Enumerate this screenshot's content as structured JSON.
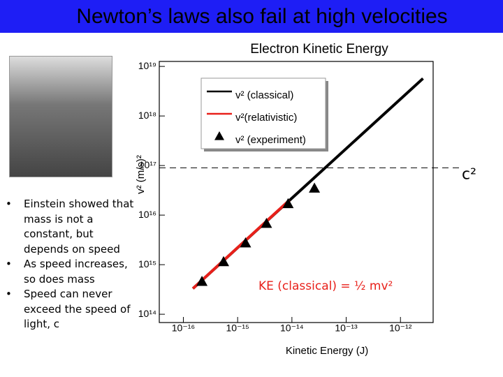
{
  "slide_title": "Newton’s laws also fail at high velocities",
  "bullets": [
    "Einstein showed that mass is not a constant, but depends on speed",
    "As speed increases, so does mass",
    "Speed can never exceed the speed of light, c"
  ],
  "chart_data": {
    "type": "line",
    "title": "Electron Kinetic Energy",
    "x_label": "Kinetic Energy (J)",
    "y_label": "v² (m/s)²",
    "xscale": "log",
    "yscale": "log",
    "xlim": [
      3.6e-17,
      4e-12
    ],
    "ylim": [
      68000000000000.0,
      1.26e+19
    ],
    "xticks": [
      {
        "value": 1e-16,
        "label": "10⁻¹⁶"
      },
      {
        "value": 1e-15,
        "label": "10⁻¹⁵"
      },
      {
        "value": 1e-14,
        "label": "10⁻¹⁴"
      },
      {
        "value": 1e-13,
        "label": "10⁻¹³"
      },
      {
        "value": 1e-12,
        "label": "10⁻¹²"
      }
    ],
    "yticks": [
      {
        "value": 100000000000000.0,
        "label": "10¹⁴"
      },
      {
        "value": 1000000000000000.0,
        "label": "10¹⁵"
      },
      {
        "value": 1e+16,
        "label": "10¹⁶"
      },
      {
        "value": 1e+17,
        "label": "10¹⁷"
      },
      {
        "value": 1e+18,
        "label": "10¹⁸"
      },
      {
        "value": 1e+19,
        "label": "10¹⁹"
      }
    ],
    "series": [
      {
        "name": "v² (classical)",
        "color": "#000000",
        "mode": "line",
        "x": [
          1.5e-16,
          2.6e-12
        ],
        "values": [
          330000000000000.0,
          5.7e+18
        ]
      },
      {
        "name": "v²(relativistic)",
        "color": "#e8201a",
        "mode": "line",
        "x": [
          1.5e-16,
          9e-15
        ],
        "values": [
          330000000000000.0,
          2e+16
        ]
      },
      {
        "name": "v² (experiment)",
        "color": "#000000",
        "mode": "markers",
        "x": [
          2.2e-16,
          5.5e-16,
          1.4e-15,
          3.4e-15,
          8.5e-15,
          2.6e-14
        ],
        "values": [
          460000000000000.0,
          1150000000000000.0,
          2750000000000000.0,
          6800000000000000.0,
          1.7e+16,
          3.5e+16
        ]
      }
    ],
    "reference_line": {
      "value": 9e+16,
      "label": "c²"
    },
    "annotation": "KE (classical) = ½ mv²"
  }
}
